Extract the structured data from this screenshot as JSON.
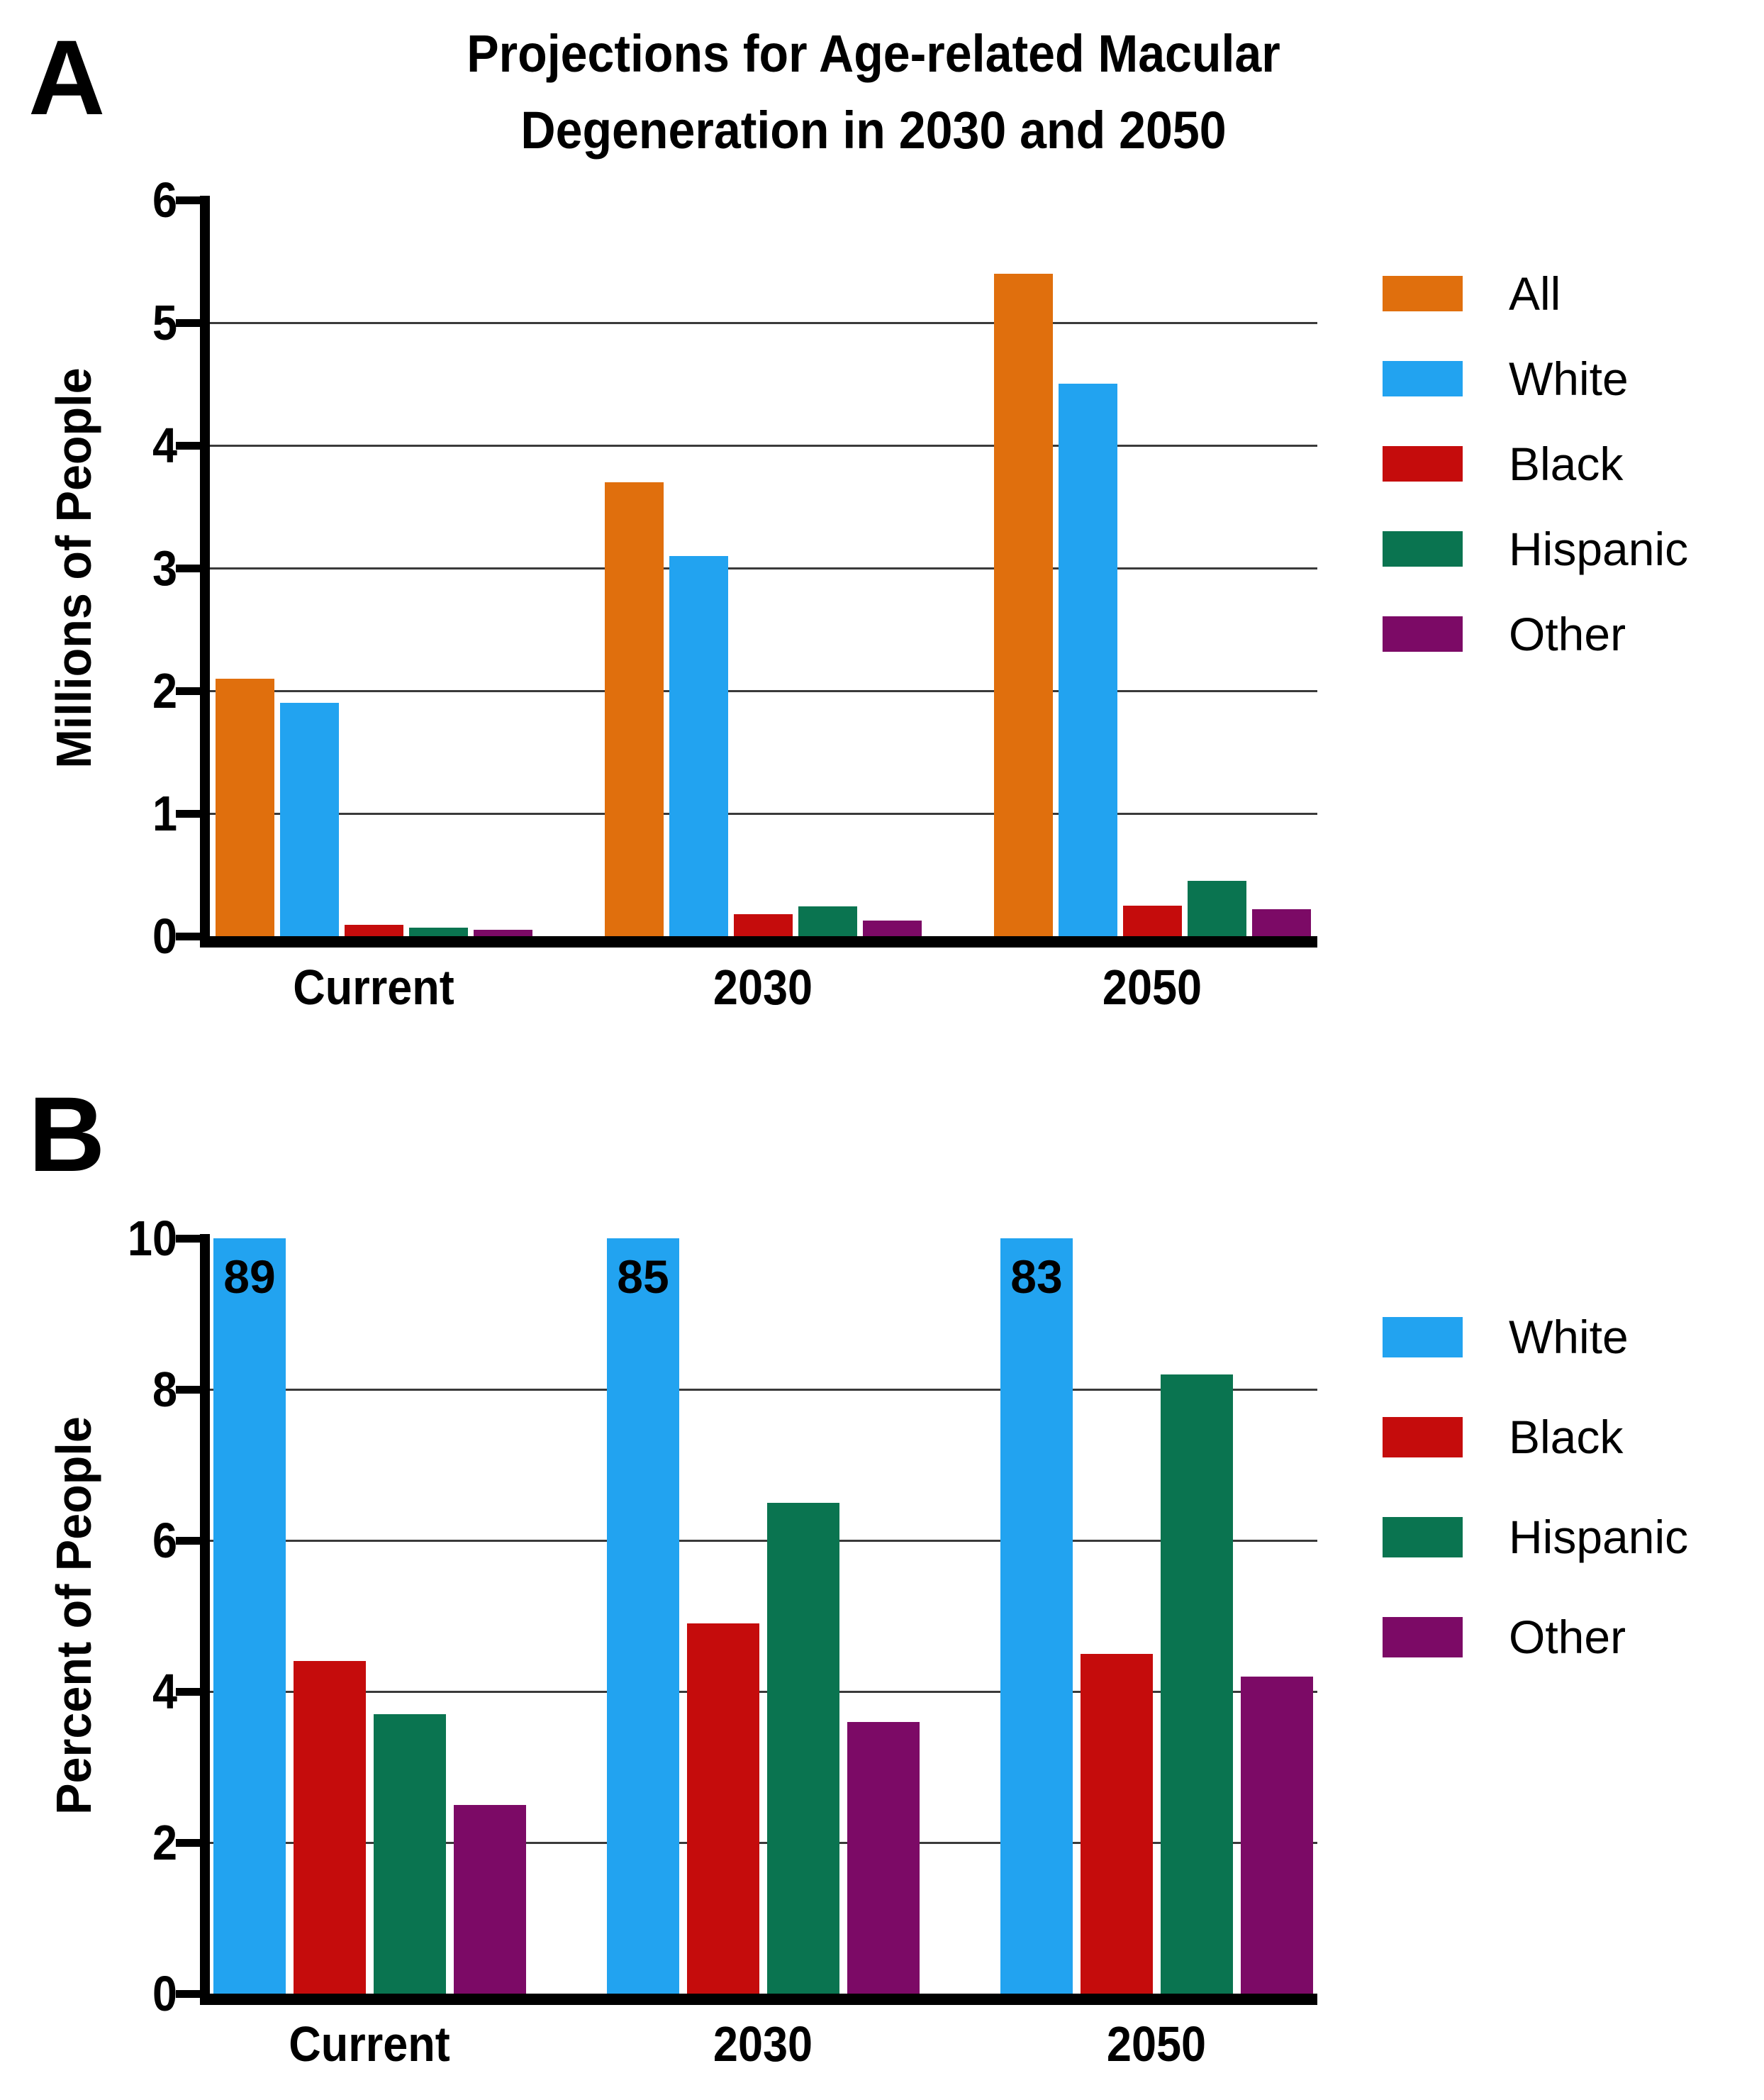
{
  "figure": {
    "title_line1": "Projections for Age-related Macular",
    "title_line2": "Degeneration in 2030 and 2050",
    "background": "#ffffff"
  },
  "panels": [
    {
      "letter": "A",
      "y_axis_title": "Millions of People"
    },
    {
      "letter": "B",
      "y_axis_title": "Percent of People"
    }
  ],
  "colors": {
    "all": "#E06F0D",
    "white": "#22A3F0",
    "black": "#C50C0C",
    "hispanic": "#0A7450",
    "other": "#7C0A66",
    "gridline": "#3a3a3a",
    "axis": "#000000"
  },
  "chart_data": [
    {
      "panel": "A",
      "type": "bar",
      "title": "Projections for Age-related Macular Degeneration in 2030 and 2050",
      "xlabel": "",
      "ylabel": "Millions of People",
      "categories": [
        "Current",
        "2030",
        "2050"
      ],
      "series": [
        {
          "name": "All",
          "color": "#E06F0D",
          "values": [
            2.1,
            3.7,
            5.4
          ]
        },
        {
          "name": "White",
          "color": "#22A3F0",
          "values": [
            1.9,
            3.1,
            4.5
          ]
        },
        {
          "name": "Black",
          "color": "#C50C0C",
          "values": [
            0.09,
            0.18,
            0.25
          ]
        },
        {
          "name": "Hispanic",
          "color": "#0A7450",
          "values": [
            0.07,
            0.24,
            0.45
          ]
        },
        {
          "name": "Other",
          "color": "#7C0A66",
          "values": [
            0.05,
            0.13,
            0.22
          ]
        }
      ],
      "ylim": [
        0,
        6
      ],
      "yticks": [
        0,
        1,
        2,
        3,
        4,
        5,
        6
      ],
      "grid": true,
      "legend_position": "right"
    },
    {
      "panel": "B",
      "type": "bar",
      "title": "",
      "xlabel": "",
      "ylabel": "Percent of People",
      "categories": [
        "Current",
        "2030",
        "2050"
      ],
      "series": [
        {
          "name": "White",
          "color": "#22A3F0",
          "values": [
            89,
            85,
            83
          ],
          "display_cap": 10,
          "bar_labels": [
            "89",
            "85",
            "83"
          ]
        },
        {
          "name": "Black",
          "color": "#C50C0C",
          "values": [
            4.4,
            4.9,
            4.5
          ]
        },
        {
          "name": "Hispanic",
          "color": "#0A7450",
          "values": [
            3.7,
            6.5,
            8.2
          ]
        },
        {
          "name": "Other",
          "color": "#7C0A66",
          "values": [
            2.5,
            3.6,
            4.2
          ]
        }
      ],
      "ylim": [
        0,
        10
      ],
      "yticks": [
        0,
        2,
        4,
        6,
        8,
        10
      ],
      "grid": true,
      "legend_position": "right",
      "note": "White bars exceed the axis maximum and are clipped at 10 with their percent values shown as labels"
    }
  ]
}
